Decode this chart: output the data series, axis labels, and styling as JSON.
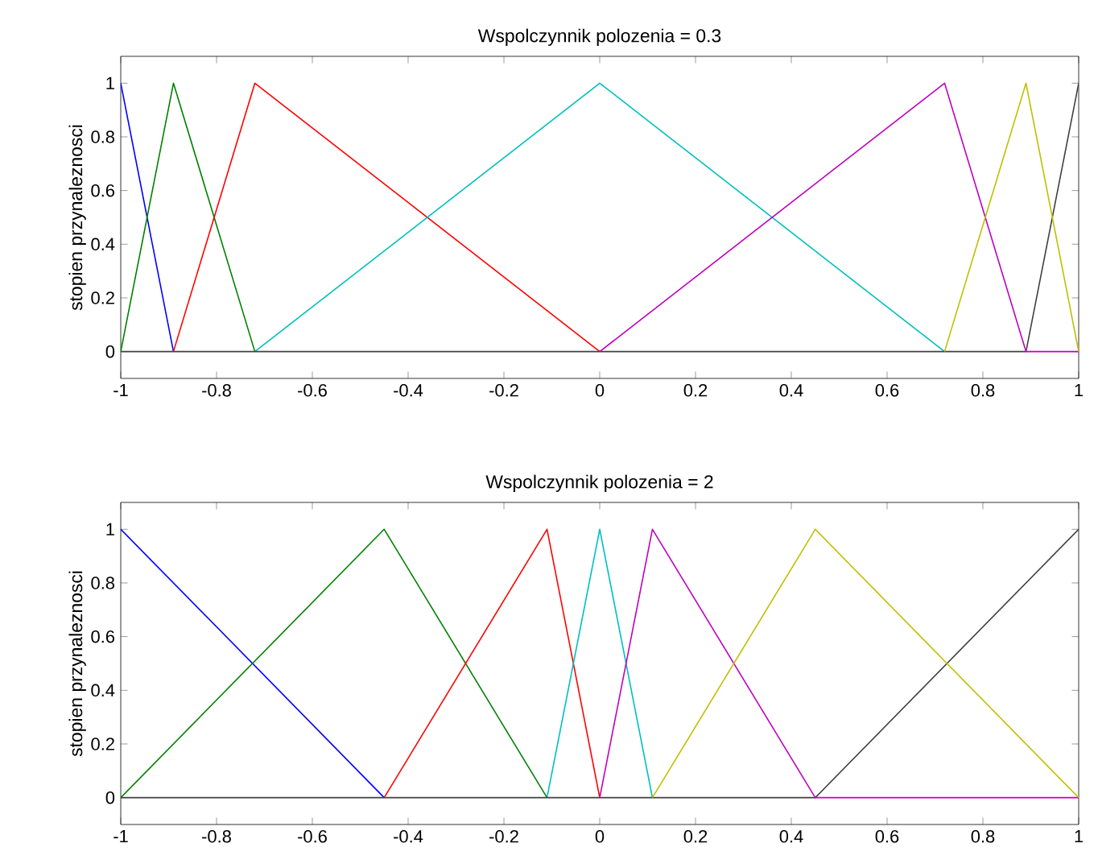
{
  "chart_data": [
    {
      "type": "line",
      "title": "Wspolczynnik polozenia = 0.3",
      "ylabel": "stopien przynaleznosci",
      "xlim": [
        -1,
        1
      ],
      "ylim": [
        -0.1,
        1.1
      ],
      "xticks": [
        -1,
        -0.8,
        -0.6,
        -0.4,
        -0.2,
        0,
        0.2,
        0.4,
        0.6,
        0.8,
        1
      ],
      "yticks": [
        0,
        0.2,
        0.4,
        0.6,
        0.8,
        1
      ],
      "marker": "none",
      "line_style": "solid",
      "series": [
        {
          "color": "#0000ff",
          "x": [
            -1,
            -0.89
          ],
          "values": [
            1,
            0
          ]
        },
        {
          "color": "#008000",
          "x": [
            -1,
            -0.89,
            -0.72
          ],
          "values": [
            0,
            1,
            0
          ]
        },
        {
          "color": "#ff0000",
          "x": [
            -0.89,
            -0.72,
            0
          ],
          "values": [
            0,
            1,
            0
          ]
        },
        {
          "color": "#00bfbf",
          "x": [
            -0.72,
            0,
            0.72
          ],
          "values": [
            0,
            1,
            0
          ]
        },
        {
          "color": "#404040",
          "x": [
            -1,
            0.89,
            1
          ],
          "values": [
            0,
            0,
            1
          ]
        },
        {
          "color": "#bf00bf",
          "x": [
            0,
            0.72,
            0.89,
            1
          ],
          "values": [
            0,
            1,
            0,
            0
          ]
        },
        {
          "color": "#bfbf00",
          "x": [
            0.72,
            0.89,
            1
          ],
          "values": [
            0,
            1,
            0
          ]
        }
      ]
    },
    {
      "type": "line",
      "title": "Wspolczynnik polozenia = 2",
      "ylabel": "stopien przynaleznosci",
      "xlim": [
        -1,
        1
      ],
      "ylim": [
        -0.1,
        1.1
      ],
      "xticks": [
        -1,
        -0.8,
        -0.6,
        -0.4,
        -0.2,
        0,
        0.2,
        0.4,
        0.6,
        0.8,
        1
      ],
      "yticks": [
        0,
        0.2,
        0.4,
        0.6,
        0.8,
        1
      ],
      "marker": "none",
      "line_style": "solid",
      "series": [
        {
          "color": "#0000ff",
          "x": [
            -1,
            -0.45
          ],
          "values": [
            1,
            0
          ]
        },
        {
          "color": "#008000",
          "x": [
            -1,
            -0.45,
            -0.11
          ],
          "values": [
            0,
            1,
            0
          ]
        },
        {
          "color": "#ff0000",
          "x": [
            -0.45,
            -0.11,
            0
          ],
          "values": [
            0,
            1,
            0
          ]
        },
        {
          "color": "#00bfbf",
          "x": [
            -0.11,
            0,
            0.11
          ],
          "values": [
            0,
            1,
            0
          ]
        },
        {
          "color": "#404040",
          "x": [
            -1,
            0.45,
            1
          ],
          "values": [
            0,
            0,
            1
          ]
        },
        {
          "color": "#bf00bf",
          "x": [
            0,
            0.11,
            0.45,
            1
          ],
          "values": [
            0,
            1,
            0,
            0
          ]
        },
        {
          "color": "#bfbf00",
          "x": [
            0.11,
            0.45,
            1
          ],
          "values": [
            0,
            1,
            0
          ]
        }
      ]
    }
  ]
}
